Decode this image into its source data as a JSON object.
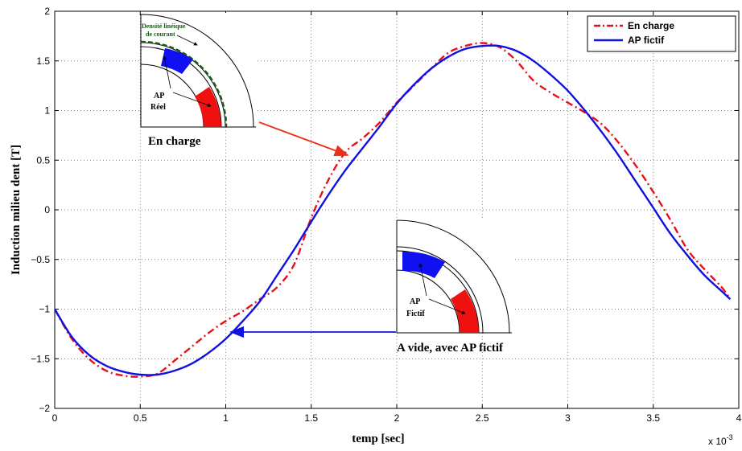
{
  "chart_data": {
    "type": "line",
    "xlabel": "temp [sec]",
    "ylabel": "Induction milieu dent [T]",
    "x_multiplier_label": "x 10",
    "x_multiplier_exp": "-3",
    "xlim": [
      0,
      4
    ],
    "ylim": [
      -2,
      2
    ],
    "xticks": [
      "0",
      "0.5",
      "1",
      "1.5",
      "2",
      "2.5",
      "3",
      "3.5",
      "4"
    ],
    "yticks": [
      "2",
      "1.5",
      "1",
      "0.5",
      "0",
      "-0.5",
      "-1",
      "-1.5",
      "-2"
    ],
    "grid": true,
    "legend_position": "top-right",
    "series": [
      {
        "name": "En charge",
        "color": "#e8101a",
        "style": "dash-dot",
        "x": [
          0,
          0.1,
          0.2,
          0.3,
          0.4,
          0.5,
          0.6,
          0.7,
          0.8,
          0.9,
          1.0,
          1.1,
          1.2,
          1.3,
          1.4,
          1.5,
          1.6,
          1.7,
          1.8,
          1.9,
          2.0,
          2.1,
          2.2,
          2.3,
          2.4,
          2.5,
          2.6,
          2.7,
          2.8,
          2.9,
          3.0,
          3.1,
          3.2,
          3.3,
          3.4,
          3.5,
          3.6,
          3.7,
          3.8,
          3.9,
          3.95
        ],
        "y": [
          -1.0,
          -1.3,
          -1.5,
          -1.62,
          -1.67,
          -1.68,
          -1.65,
          -1.52,
          -1.38,
          -1.24,
          -1.12,
          -1.02,
          -0.9,
          -0.78,
          -0.55,
          -0.08,
          0.3,
          0.58,
          0.72,
          0.88,
          1.08,
          1.25,
          1.42,
          1.58,
          1.65,
          1.68,
          1.64,
          1.5,
          1.3,
          1.18,
          1.08,
          0.98,
          0.86,
          0.67,
          0.44,
          0.18,
          -0.1,
          -0.4,
          -0.6,
          -0.78,
          -0.9
        ]
      },
      {
        "name": "AP fictif",
        "color": "#1010e0",
        "style": "solid",
        "x": [
          0,
          0.1,
          0.2,
          0.3,
          0.4,
          0.5,
          0.6,
          0.7,
          0.8,
          0.9,
          1.0,
          1.1,
          1.2,
          1.3,
          1.4,
          1.5,
          1.6,
          1.7,
          1.8,
          1.9,
          2.0,
          2.1,
          2.2,
          2.3,
          2.4,
          2.5,
          2.6,
          2.7,
          2.8,
          2.9,
          3.0,
          3.1,
          3.2,
          3.3,
          3.4,
          3.5,
          3.6,
          3.7,
          3.8,
          3.9,
          3.95
        ],
        "y": [
          -1.0,
          -1.28,
          -1.46,
          -1.57,
          -1.63,
          -1.66,
          -1.66,
          -1.62,
          -1.55,
          -1.44,
          -1.3,
          -1.12,
          -0.92,
          -0.66,
          -0.4,
          -0.12,
          0.15,
          0.4,
          0.62,
          0.84,
          1.07,
          1.26,
          1.42,
          1.54,
          1.62,
          1.65,
          1.65,
          1.6,
          1.5,
          1.36,
          1.2,
          1.0,
          0.78,
          0.54,
          0.28,
          0.02,
          -0.24,
          -0.46,
          -0.66,
          -0.82,
          -0.9
        ]
      }
    ],
    "annotations": {
      "inset_load": {
        "caption": "En charge",
        "label_ap": "AP",
        "label_ap2": "Réel",
        "label_density": "Densité linéique",
        "label_density2": "de courant"
      },
      "inset_noload": {
        "caption": "A vide, avec AP fictif",
        "label_ap": "AP",
        "label_ap2": "Fictif"
      }
    }
  }
}
